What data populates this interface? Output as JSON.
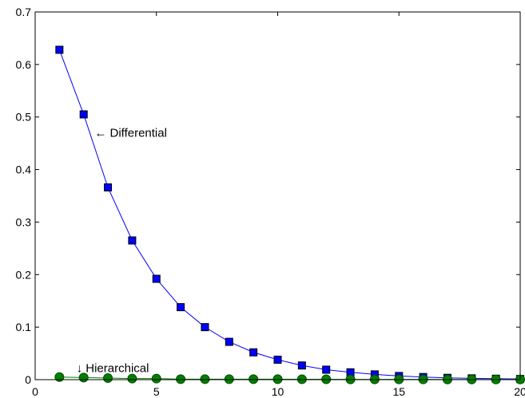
{
  "chart_data": {
    "type": "line",
    "title": "",
    "xlabel": "",
    "ylabel": "",
    "xlim": [
      0,
      20
    ],
    "ylim": [
      0,
      0.7
    ],
    "grid": false,
    "x_ticks": [
      0,
      5,
      10,
      15,
      20
    ],
    "y_ticks": [
      0,
      0.1,
      0.2,
      0.3,
      0.4,
      0.5,
      0.6,
      0.7
    ],
    "x_tick_labels": [
      "0",
      "5",
      "10",
      "15",
      "20"
    ],
    "y_tick_labels": [
      "0",
      "0.1",
      "0.2",
      "0.3",
      "0.4",
      "0.5",
      "0.6",
      "0.7"
    ],
    "x": [
      1,
      2,
      3,
      4,
      5,
      6,
      7,
      8,
      9,
      10,
      11,
      12,
      13,
      14,
      15,
      16,
      17,
      18,
      19,
      20
    ],
    "series": [
      {
        "marker": "square",
        "line_color": "#0000ff",
        "marker_color": "#0000ff",
        "marker_edge_color": "#000000",
        "values": [
          0.628,
          0.505,
          0.366,
          0.265,
          0.192,
          0.138,
          0.1,
          0.072,
          0.052,
          0.038,
          0.027,
          0.019,
          0.014,
          0.01,
          0.007,
          0.005,
          0.0035,
          0.0025,
          0.0018,
          0.0013
        ]
      },
      {
        "marker": "circle",
        "line_color": "#008000",
        "marker_color": "#008000",
        "marker_edge_color": "#004d00",
        "values": [
          0.005,
          0.004,
          0.003,
          0.002,
          0.002,
          0.001,
          0.001,
          0.001,
          0.001,
          0.001,
          0.0008,
          0.0008,
          0.0006,
          0.0006,
          0.0005,
          0.0005,
          0.0004,
          0.0004,
          0.0004,
          0.0003
        ]
      }
    ],
    "annotations": [
      {
        "text": "← Differential",
        "x": 2.45,
        "y": 0.47
      },
      {
        "text": "↓ Hierarchical",
        "x": 1.7,
        "y": 0.022
      }
    ]
  }
}
